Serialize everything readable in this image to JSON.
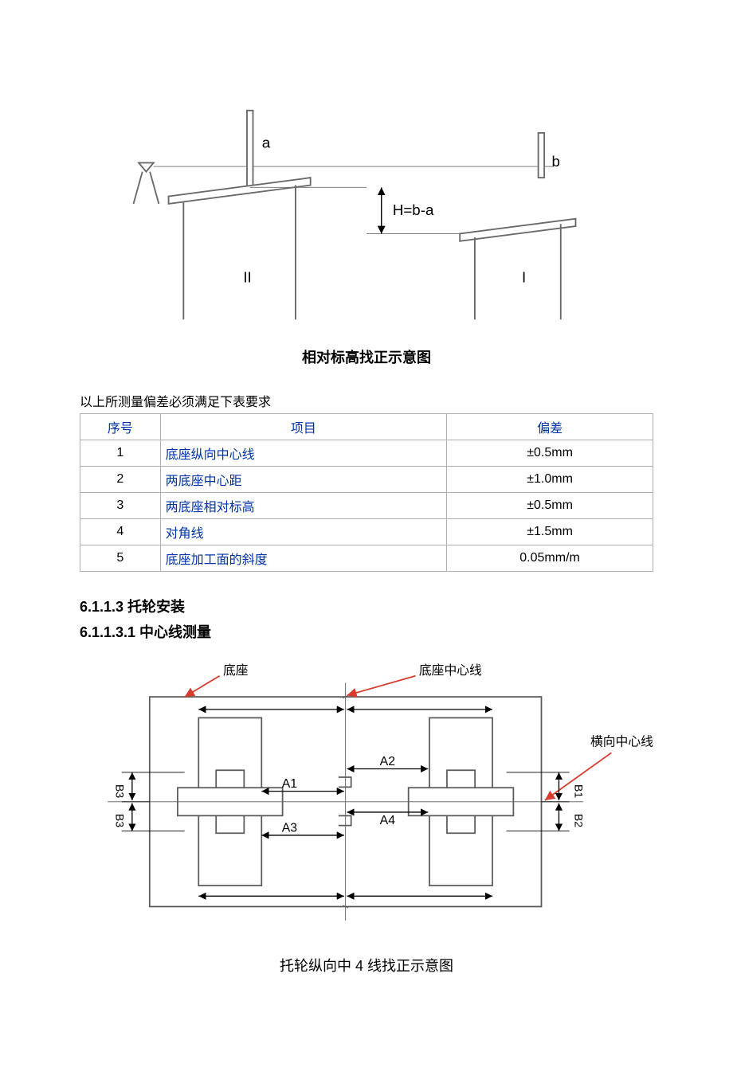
{
  "figure1": {
    "caption": "相对标高找正示意图",
    "labels": {
      "a": "a",
      "b": "b",
      "H": "H=b-a",
      "II": "II",
      "I": "I"
    },
    "stroke": "#6a6a6a",
    "sight_line_weight": 1,
    "weight": 2
  },
  "note_above_table": "以上所测量偏差必须满足下表要求",
  "table": {
    "headers": [
      "序号",
      "项目",
      "偏差"
    ],
    "rows": [
      [
        "1",
        "底座纵向中心线",
        "±0.5mm"
      ],
      [
        "2",
        "两底座中心距",
        "±1.0mm"
      ],
      [
        "3",
        "两底座相对标高",
        "±0.5mm"
      ],
      [
        "4",
        "对角线",
        "±1.5mm"
      ],
      [
        "5",
        "底座加工面的斜度",
        "0.05mm/m"
      ]
    ],
    "header_color": "#0033aa",
    "item_color": "#0033aa",
    "border_color": "#b0b0b0"
  },
  "headings": {
    "h1": "6.1.1.3  托轮安装",
    "h2": "6.1.1.3.1  中心线测量"
  },
  "figure2": {
    "caption": "托轮纵向中 4 线找正示意图",
    "labels": {
      "base": "底座",
      "base_centerline": "底座中心线",
      "trans_centerline": "横向中心线",
      "A1": "A1",
      "A2": "A2",
      "A3": "A3",
      "A4": "A4",
      "B1": "B1",
      "B2": "B2",
      "B3t": "B3",
      "B3b": "B3"
    },
    "color_red": "#d83a2b",
    "stroke": "#5a5a5a",
    "weight": 2
  }
}
